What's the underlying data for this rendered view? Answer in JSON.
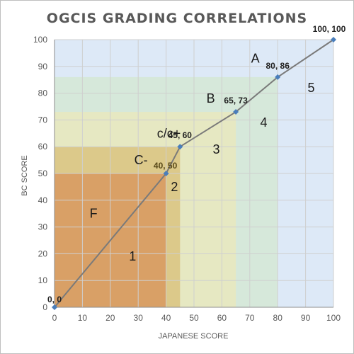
{
  "chart_data": {
    "type": "line",
    "title": "OGCIS GRADING CORRELATIONS",
    "xlabel": "JAPANESE SCORE",
    "ylabel": "BC SCORE",
    "xlim": [
      0,
      100
    ],
    "ylim": [
      0,
      100
    ],
    "xticks": [
      0,
      10,
      20,
      30,
      40,
      50,
      60,
      70,
      80,
      90,
      100
    ],
    "yticks": [
      0,
      10,
      20,
      30,
      40,
      50,
      60,
      70,
      80,
      90,
      100
    ],
    "grid": true,
    "series": [
      {
        "color": "#4a7ebb",
        "points": [
          {
            "x": 0,
            "y": 0,
            "label": "0, 0"
          },
          {
            "x": 40,
            "y": 50,
            "label": "40, 50"
          },
          {
            "x": 45,
            "y": 60,
            "label": "45, 60"
          },
          {
            "x": 65,
            "y": 73,
            "label": "65, 73"
          },
          {
            "x": 80,
            "y": 86,
            "label": "80, 86"
          },
          {
            "x": 100,
            "y": 100,
            "label": "100, 100"
          }
        ]
      }
    ],
    "bands": [
      {
        "x": 100,
        "y": 100,
        "color": "#dde9f7"
      },
      {
        "x": 80,
        "y": 86,
        "color": "#d6e8da"
      },
      {
        "x": 65,
        "y": 73,
        "color": "#e6e8c2"
      },
      {
        "x": 45,
        "y": 60,
        "color": "#dcc98a"
      },
      {
        "x": 40,
        "y": 50,
        "color": "#d9a066"
      }
    ],
    "bc_grades": [
      {
        "text": "F",
        "x": 14,
        "y": 35
      },
      {
        "text": "C-",
        "x": 31,
        "y": 55
      },
      {
        "text": "c/c+",
        "x": 41,
        "y": 65
      },
      {
        "text": "B",
        "x": 56,
        "y": 78
      },
      {
        "text": "A",
        "x": 72,
        "y": 93
      }
    ],
    "japanese_grades": [
      {
        "text": "1",
        "x": 28,
        "y": 19
      },
      {
        "text": "2",
        "x": 43,
        "y": 45
      },
      {
        "text": "3",
        "x": 58,
        "y": 59
      },
      {
        "text": "4",
        "x": 75,
        "y": 69
      },
      {
        "text": "5",
        "x": 92,
        "y": 82
      }
    ]
  }
}
